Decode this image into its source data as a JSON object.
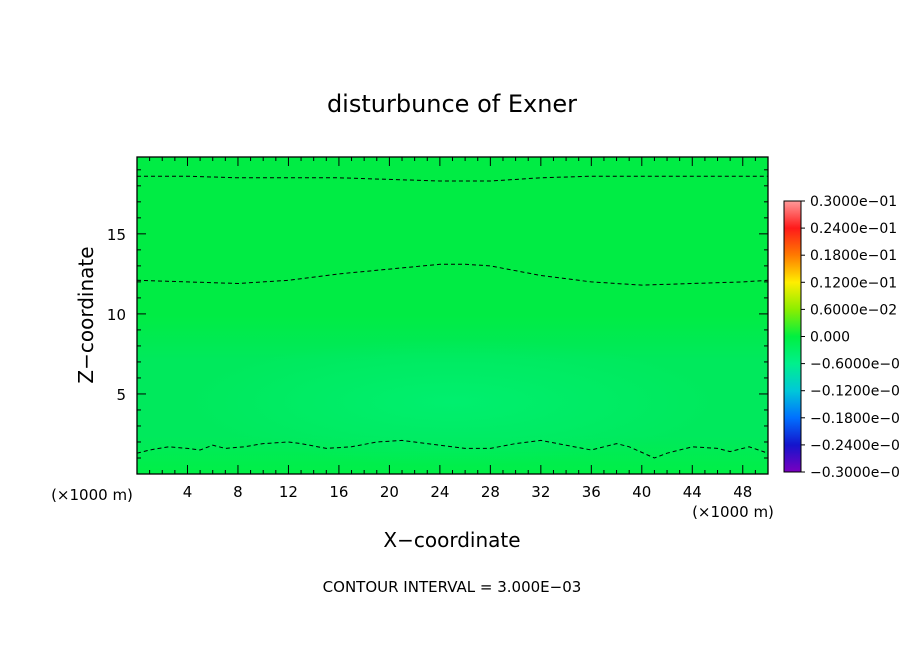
{
  "chart_data": {
    "type": "heatmap",
    "title": "disturbunce of Exner",
    "xlabel": "X−coordinate",
    "ylabel": "Z−coordinate",
    "x_unit_left": "(×1000 m)",
    "x_unit_right": "(×1000 m)",
    "footer": "CONTOUR INTERVAL = 3.000E−03",
    "xlim": [
      0,
      50
    ],
    "ylim": [
      0,
      19.8
    ],
    "x_ticks": [
      4,
      8,
      12,
      16,
      20,
      24,
      28,
      32,
      36,
      40,
      44,
      48
    ],
    "y_ticks": [
      5,
      10,
      15
    ],
    "colorbar": {
      "labels": [
        "0.3000e−01",
        "0.2400e−01",
        "0.1800e−01",
        "0.1200e−01",
        "0.6000e−02",
        "0.000",
        "−0.6000e−0",
        "−0.1200e−0",
        "−0.1800e−0",
        "−0.2400e−0",
        "−0.3000e−0"
      ],
      "colors": [
        "#ff9a9a",
        "#ff1a1a",
        "#ff7a00",
        "#ffee00",
        "#8cee00",
        "#00f040",
        "#00f08c",
        "#00c8d8",
        "#0070ff",
        "#1414cc",
        "#7a00c0"
      ]
    },
    "fill_colors": {
      "upper": "#00ec44",
      "middle": "#00e95c",
      "trough": "#00f070",
      "bottom": "#00f046"
    },
    "contours": [
      {
        "style": "dashed",
        "x": [
          0,
          4,
          8,
          12,
          16,
          20,
          24,
          26,
          28,
          32,
          36,
          40,
          44,
          48,
          50
        ],
        "y": [
          18.6,
          18.6,
          18.5,
          18.5,
          18.5,
          18.4,
          18.3,
          18.3,
          18.3,
          18.5,
          18.6,
          18.6,
          18.6,
          18.6,
          18.6
        ]
      },
      {
        "style": "dashed",
        "x": [
          0,
          4,
          8,
          12,
          16,
          20,
          24,
          26,
          28,
          32,
          36,
          40,
          44,
          48,
          50
        ],
        "y": [
          12.1,
          12.0,
          11.9,
          12.1,
          12.5,
          12.8,
          13.1,
          13.1,
          13.0,
          12.4,
          12.0,
          11.8,
          11.9,
          12.0,
          12.1
        ]
      },
      {
        "style": "dashed",
        "x": [
          0,
          1,
          2.5,
          4,
          5,
          6,
          7,
          8.5,
          10,
          12,
          13,
          15,
          17,
          19,
          21,
          22,
          24,
          26,
          28,
          30,
          32,
          34,
          36,
          38,
          39,
          41,
          42,
          44,
          46,
          47,
          48.5,
          50
        ],
        "y": [
          1.3,
          1.5,
          1.7,
          1.6,
          1.5,
          1.8,
          1.6,
          1.7,
          1.9,
          2.0,
          1.9,
          1.6,
          1.7,
          2.0,
          2.1,
          2.0,
          1.8,
          1.6,
          1.6,
          1.9,
          2.1,
          1.8,
          1.5,
          1.9,
          1.7,
          1.0,
          1.3,
          1.7,
          1.6,
          1.4,
          1.7,
          1.3
        ]
      }
    ]
  }
}
